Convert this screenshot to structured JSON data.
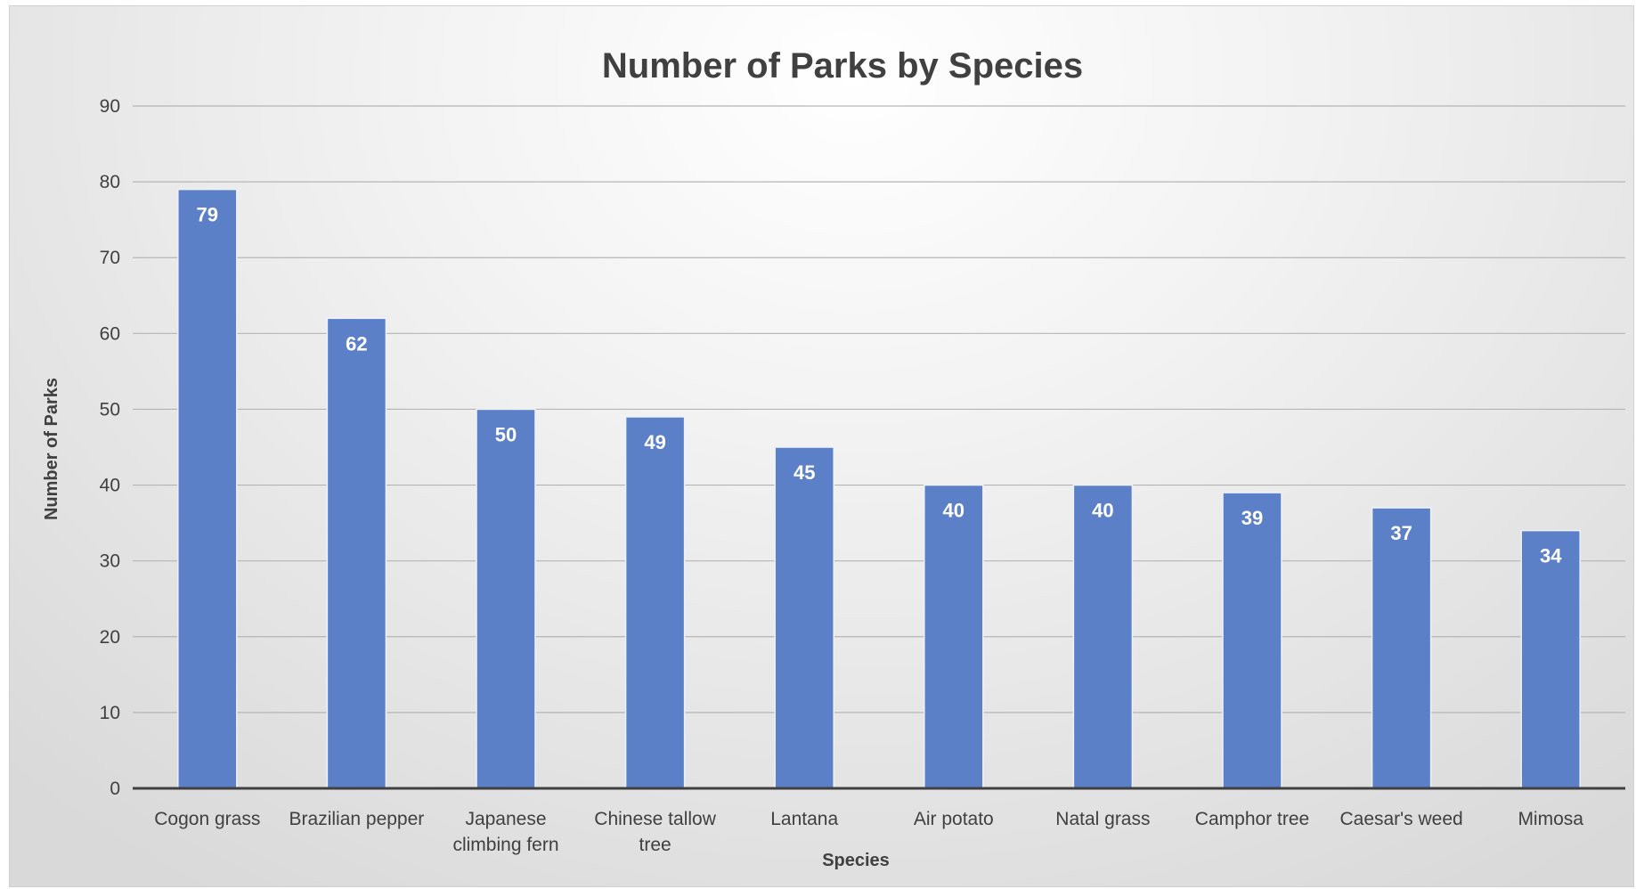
{
  "chart_data": {
    "type": "bar",
    "title": "Number of Parks by Species",
    "xlabel": "Species",
    "ylabel": "Number of Parks",
    "categories": [
      "Cogon grass",
      "Brazilian pepper",
      "Japanese climbing fern",
      "Chinese tallow tree",
      "Lantana",
      "Air potato",
      "Natal grass",
      "Camphor tree",
      "Caesar's weed",
      "Mimosa"
    ],
    "category_label_lines": [
      [
        "Cogon grass"
      ],
      [
        "Brazilian pepper"
      ],
      [
        "Japanese",
        "climbing fern"
      ],
      [
        "Chinese tallow",
        "tree"
      ],
      [
        "Lantana"
      ],
      [
        "Air potato"
      ],
      [
        "Natal grass"
      ],
      [
        "Camphor tree"
      ],
      [
        "Caesar's weed"
      ],
      [
        "Mimosa"
      ]
    ],
    "values": [
      79,
      62,
      50,
      49,
      45,
      40,
      40,
      39,
      37,
      34
    ],
    "ylim": [
      0,
      90
    ],
    "yticks": [
      0,
      10,
      20,
      30,
      40,
      50,
      60,
      70,
      80,
      90
    ],
    "grid": true,
    "legend": "none",
    "data_labels": "inside-top",
    "bar_color": "#5b80c8",
    "text_color": "#404040"
  }
}
